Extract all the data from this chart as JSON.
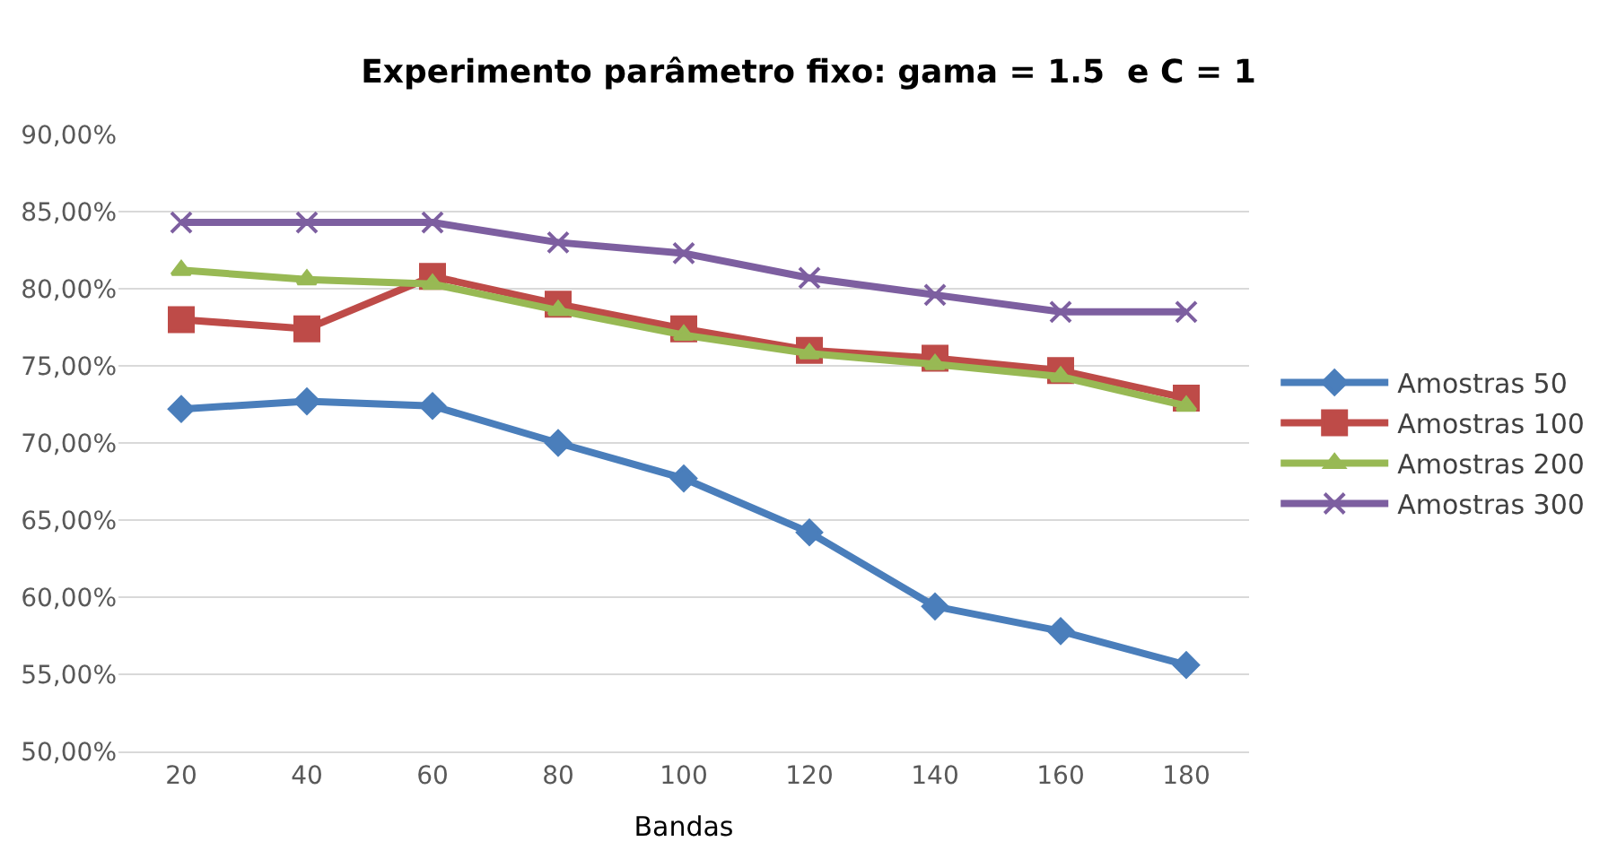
{
  "chart_data": {
    "type": "line",
    "title": "Experimento parâmetro fixo: gama = 1.5  e C = 1",
    "xlabel": "Bandas",
    "categories": [
      "20",
      "40",
      "60",
      "80",
      "100",
      "120",
      "140",
      "160",
      "180"
    ],
    "series": [
      {
        "name": "Amostras 50",
        "color": "#4a7ebb",
        "marker": "diamond",
        "values": [
          72.2,
          72.7,
          72.4,
          70.0,
          67.7,
          64.2,
          59.4,
          57.8,
          55.6
        ]
      },
      {
        "name": "Amostras 100",
        "color": "#be4b48",
        "marker": "square",
        "values": [
          78.0,
          77.4,
          80.8,
          79.0,
          77.4,
          76.0,
          75.5,
          74.7,
          72.9
        ]
      },
      {
        "name": "Amostras 200",
        "color": "#98b954",
        "marker": "triangle",
        "values": [
          81.2,
          80.6,
          80.3,
          78.6,
          77.0,
          75.8,
          75.1,
          74.3,
          72.4
        ]
      },
      {
        "name": "Amostras 300",
        "color": "#7d5fa0",
        "marker": "cross",
        "values": [
          84.3,
          84.3,
          84.3,
          83.0,
          82.3,
          80.7,
          79.6,
          78.5,
          78.5
        ]
      }
    ],
    "ylim": [
      50,
      90
    ],
    "yticks": [
      {
        "value": 50,
        "label": "50,00%"
      },
      {
        "value": 55,
        "label": "55,00%"
      },
      {
        "value": 60,
        "label": "60,00%"
      },
      {
        "value": 65,
        "label": "65,00%"
      },
      {
        "value": 70,
        "label": "70,00%"
      },
      {
        "value": 75,
        "label": "75,00%"
      },
      {
        "value": 80,
        "label": "80,00%"
      },
      {
        "value": 85,
        "label": "85,00%"
      },
      {
        "value": 90,
        "label": "90,00%"
      }
    ],
    "grid": "y",
    "legend": "right",
    "line_style": "solid"
  }
}
